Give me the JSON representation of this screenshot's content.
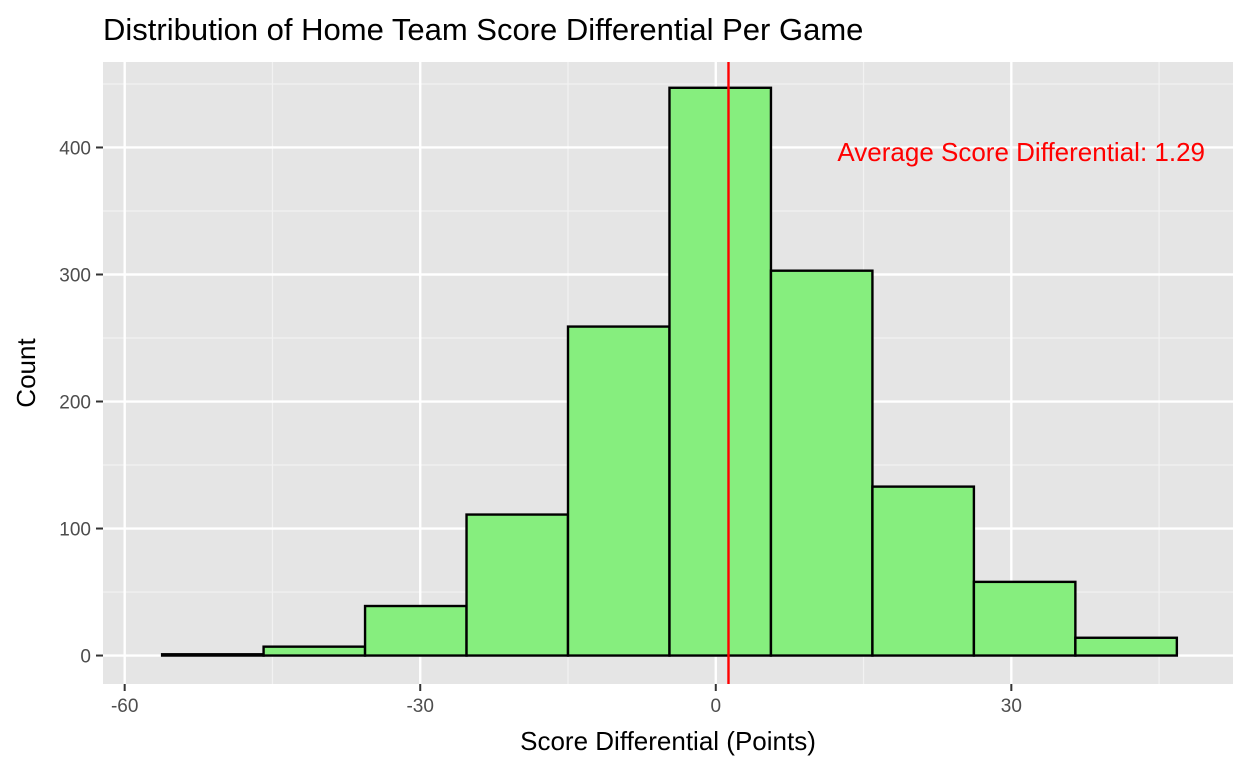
{
  "chart_data": {
    "type": "bar",
    "subtype": "histogram",
    "title": "Distribution of Home Team Score Differential Per Game",
    "xlabel": "Score Differential (Points)",
    "ylabel": "Count",
    "xlim": [
      -60,
      46.5
    ],
    "ylim": [
      0,
      460
    ],
    "x_ticks": [
      -60,
      -30,
      0,
      30
    ],
    "x_tick_labels": [
      "-60",
      "-30",
      "0",
      "30"
    ],
    "y_ticks": [
      0,
      100,
      200,
      300,
      400
    ],
    "y_tick_labels": [
      "0",
      "100",
      "200",
      "300",
      "400"
    ],
    "bins": [
      {
        "x_start": -56.2,
        "x_end": -45.9,
        "count": 1
      },
      {
        "x_start": -45.9,
        "x_end": -35.6,
        "count": 7
      },
      {
        "x_start": -35.6,
        "x_end": -25.3,
        "count": 39
      },
      {
        "x_start": -25.3,
        "x_end": -15.0,
        "count": 111
      },
      {
        "x_start": -15.0,
        "x_end": -4.7,
        "count": 259
      },
      {
        "x_start": -4.7,
        "x_end": 5.6,
        "count": 447
      },
      {
        "x_start": 5.6,
        "x_end": 15.9,
        "count": 303
      },
      {
        "x_start": 15.9,
        "x_end": 26.2,
        "count": 133
      },
      {
        "x_start": 26.2,
        "x_end": 36.5,
        "count": 58
      },
      {
        "x_start": 36.5,
        "x_end": 46.8,
        "count": 14
      }
    ],
    "reference_line": {
      "x": 1.29
    },
    "annotation": {
      "text": "Average Score Differential: 1.29"
    },
    "grid": true,
    "colors": {
      "bar_fill": "#86ee7e",
      "bar_outline": "#000000",
      "reference_line": "#ff0000",
      "annotation": "#ff0000",
      "panel_background": "#e5e5e5",
      "grid_major": "#ffffff",
      "grid_minor": "#f2f2f2"
    }
  }
}
